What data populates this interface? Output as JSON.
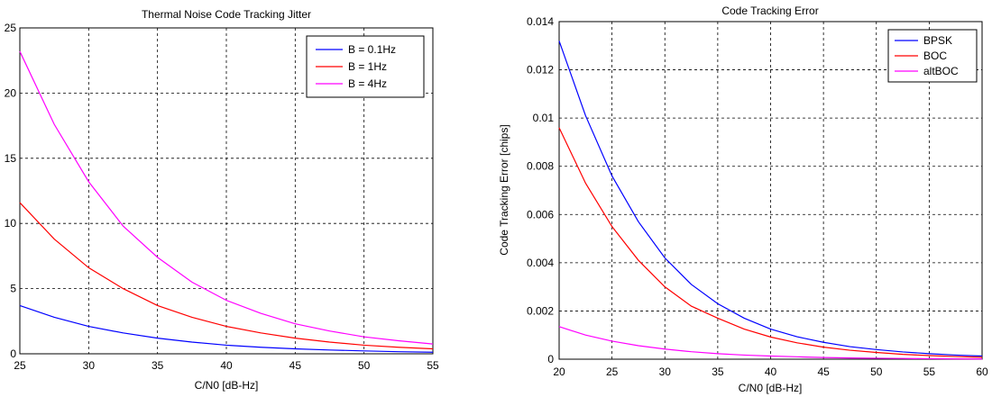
{
  "chart_data": [
    {
      "type": "line",
      "title": "Thermal Noise Code Tracking Jitter",
      "xlabel": "C/N0 [dB-Hz]",
      "ylabel": "",
      "xlim": [
        25,
        55
      ],
      "ylim": [
        0,
        25
      ],
      "xticks": [
        25,
        30,
        35,
        40,
        45,
        50,
        55
      ],
      "yticks": [
        0,
        5,
        10,
        15,
        20,
        25
      ],
      "grid": true,
      "legend_position": "top-right",
      "series": [
        {
          "name": "B = 0.1Hz",
          "color": "#0000ff",
          "x": [
            25,
            27.5,
            30,
            32.5,
            35,
            37.5,
            40,
            42.5,
            45,
            47.5,
            50,
            52.5,
            55
          ],
          "y": [
            3.7,
            2.8,
            2.1,
            1.6,
            1.2,
            0.9,
            0.66,
            0.5,
            0.38,
            0.29,
            0.22,
            0.16,
            0.12
          ]
        },
        {
          "name": "B = 1Hz",
          "color": "#ff0000",
          "x": [
            25,
            27.5,
            30,
            32.5,
            35,
            37.5,
            40,
            42.5,
            45,
            47.5,
            50,
            52.5,
            55
          ],
          "y": [
            11.6,
            8.8,
            6.6,
            5.0,
            3.7,
            2.8,
            2.1,
            1.6,
            1.2,
            0.9,
            0.66,
            0.5,
            0.38
          ]
        },
        {
          "name": "B = 4Hz",
          "color": "#ff00ff",
          "x": [
            25,
            27.5,
            30,
            32.5,
            35,
            37.5,
            40,
            42.5,
            45,
            47.5,
            50,
            52.5,
            55
          ],
          "y": [
            23.2,
            17.6,
            13.2,
            9.8,
            7.4,
            5.5,
            4.1,
            3.1,
            2.3,
            1.75,
            1.3,
            1.0,
            0.75
          ]
        }
      ]
    },
    {
      "type": "line",
      "title": "Code Tracking Error",
      "xlabel": "C/N0 [dB-Hz]",
      "ylabel": "Code Tracking Error [chips]",
      "xlim": [
        20,
        60
      ],
      "ylim": [
        0,
        0.014
      ],
      "xticks": [
        20,
        25,
        30,
        35,
        40,
        45,
        50,
        55,
        60
      ],
      "yticks": [
        0,
        0.002,
        0.004,
        0.006,
        0.008,
        0.01,
        0.012,
        0.014
      ],
      "grid": true,
      "legend_position": "top-right",
      "series": [
        {
          "name": "BPSK",
          "color": "#0000ff",
          "x": [
            20,
            22.5,
            25,
            27.5,
            30,
            32.5,
            35,
            37.5,
            40,
            42.5,
            45,
            47.5,
            50,
            52.5,
            55,
            57.5,
            60
          ],
          "y": [
            0.0132,
            0.0101,
            0.0076,
            0.0057,
            0.0042,
            0.0031,
            0.0023,
            0.0017,
            0.00125,
            0.00093,
            0.0007,
            0.00052,
            0.0004,
            0.0003,
            0.00023,
            0.00017,
            0.00013
          ]
        },
        {
          "name": "BOC",
          "color": "#ff0000",
          "x": [
            20,
            22.5,
            25,
            27.5,
            30,
            32.5,
            35,
            37.5,
            40,
            42.5,
            45,
            47.5,
            50,
            52.5,
            55,
            57.5,
            60
          ],
          "y": [
            0.0096,
            0.0073,
            0.0055,
            0.0041,
            0.003,
            0.0022,
            0.0017,
            0.00125,
            0.00092,
            0.00068,
            0.0005,
            0.00037,
            0.00028,
            0.0002,
            0.00015,
            0.00011,
            8e-05
          ]
        },
        {
          "name": "altBOC",
          "color": "#ff00ff",
          "x": [
            20,
            22.5,
            25,
            27.5,
            30,
            32.5,
            35,
            37.5,
            40,
            42.5,
            45,
            47.5,
            50,
            52.5,
            55,
            57.5,
            60
          ],
          "y": [
            0.00135,
            0.001,
            0.00075,
            0.00056,
            0.00042,
            0.00031,
            0.00023,
            0.00017,
            0.00013,
            0.0001,
            7e-05,
            5e-05,
            4e-05,
            3e-05,
            2e-05,
            1.5e-05,
            1e-05
          ]
        }
      ]
    }
  ]
}
